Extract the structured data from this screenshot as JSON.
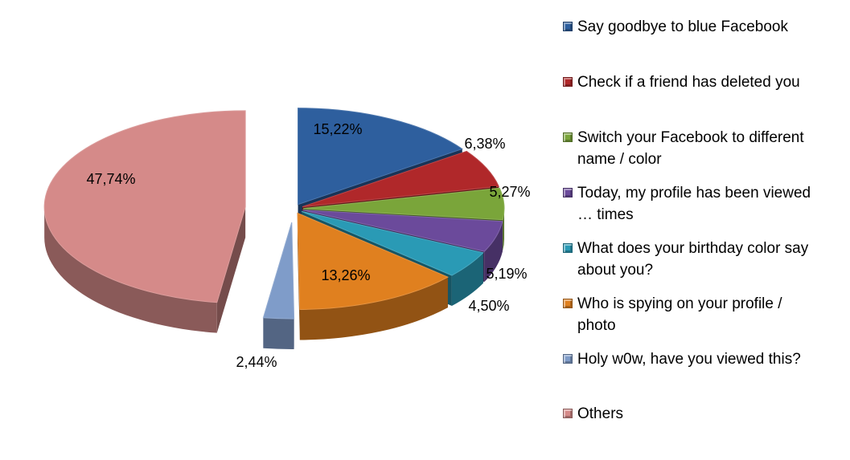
{
  "chart_data": {
    "type": "pie",
    "style": "3d-exploded",
    "title": "",
    "legend_position": "right",
    "slices": [
      {
        "label": "Say goodbye to blue Facebook",
        "value": 15.22,
        "value_text": "15,22%",
        "color": "#2E5F9E"
      },
      {
        "label": "Check if a friend has deleted you",
        "value": 6.38,
        "value_text": "6,38%",
        "color": "#B0282A"
      },
      {
        "label": "Switch your Facebook to different name / color",
        "value": 5.27,
        "value_text": "5,27%",
        "color": "#7AA53A"
      },
      {
        "label": "Today, my profile has been viewed … times",
        "value": 5.19,
        "value_text": "5,19%",
        "color": "#6B4A9B"
      },
      {
        "label": "What does your birthday color say about you?",
        "value": 4.5,
        "value_text": "4,50%",
        "color": "#2A9AB5"
      },
      {
        "label": "Who is spying on your profile / photo",
        "value": 13.26,
        "value_text": "13,26%",
        "color": "#E0801F"
      },
      {
        "label": "Holy w0w, have you viewed this?",
        "value": 2.44,
        "value_text": "2,44%",
        "color": "#7F9CC9"
      },
      {
        "label": "Others",
        "value": 47.74,
        "value_text": "47,74%",
        "color": "#D58A89"
      }
    ]
  },
  "legend": {
    "items": [
      {
        "lines": [
          "Say goodbye to blue Facebook"
        ],
        "color": "#2E5F9E"
      },
      {
        "lines": [
          "Check if a friend has deleted you"
        ],
        "color": "#B0282A"
      },
      {
        "lines": [
          "Switch your Facebook to different",
          "name / color"
        ],
        "color": "#7AA53A"
      },
      {
        "lines": [
          "Today, my profile has been viewed",
          "… times"
        ],
        "color": "#6B4A9B"
      },
      {
        "lines": [
          "What does your birthday color say",
          "about you?"
        ],
        "color": "#2A9AB5"
      },
      {
        "lines": [
          "Who is spying on your profile /",
          "photo"
        ],
        "color": "#E0801F"
      },
      {
        "lines": [
          "Holy w0w, have you viewed this?"
        ],
        "color": "#7F9CC9"
      },
      {
        "lines": [
          "Others"
        ],
        "color": "#D58A89"
      }
    ]
  }
}
